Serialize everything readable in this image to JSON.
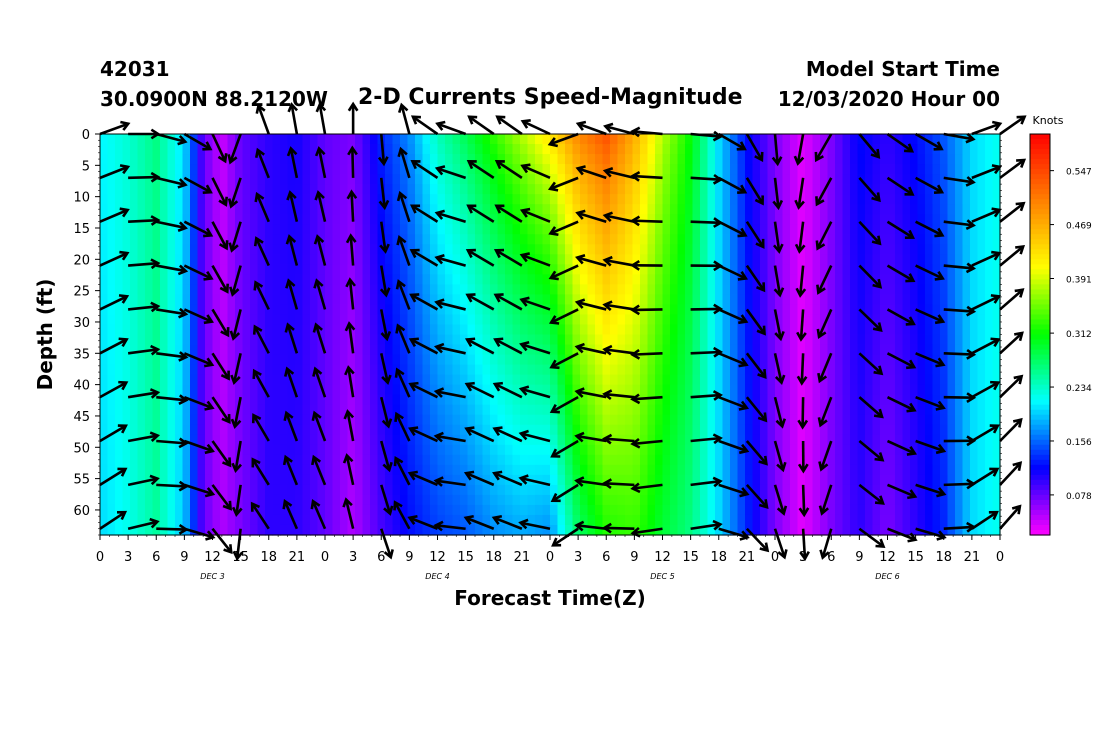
{
  "header": {
    "station_id": "42031",
    "coordinates": "30.0900N 88.2120W",
    "title": "2-D Currents Speed-Magnitude",
    "model_start_label": "Model Start Time",
    "model_start_value": "12/03/2020 Hour 00"
  },
  "chart_data": {
    "type": "heatmap",
    "title": "2-D Currents Speed-Magnitude",
    "xlabel": "Forecast Time(Z)",
    "ylabel": "Depth (ft)",
    "x_tick_labels": [
      "0",
      "3",
      "6",
      "9",
      "12",
      "15",
      "18",
      "21",
      "0",
      "3",
      "6",
      "9",
      "12",
      "15",
      "18",
      "21",
      "0",
      "3",
      "6",
      "9",
      "12",
      "15",
      "18",
      "21",
      "0",
      "3",
      "6",
      "9",
      "12",
      "15",
      "18",
      "21",
      "0"
    ],
    "x_range_hours": [
      0,
      96
    ],
    "day_labels": [
      "DEC 3",
      "DEC 4",
      "DEC 5",
      "DEC 6"
    ],
    "y_ticks": [
      0,
      5,
      10,
      15,
      20,
      25,
      30,
      35,
      40,
      45,
      50,
      55,
      60
    ],
    "y_range_ft": [
      0,
      64
    ],
    "colorbar": {
      "unit_label": "Knots",
      "tick_labels": [
        "0.547",
        "0.469",
        "0.391",
        "0.312",
        "0.234",
        "0.156",
        "0.078"
      ],
      "range": [
        0.02,
        0.6
      ],
      "colors": [
        "#ff00ff",
        "#7f00ff",
        "#0000ff",
        "#007fff",
        "#00ffff",
        "#00ff7f",
        "#00ff00",
        "#7fff00",
        "#ffff00",
        "#ffbf00",
        "#ff8000",
        "#ff4000",
        "#ff0000"
      ]
    },
    "speed_profile_by_hour": [
      {
        "hour": 0,
        "surface": 0.21,
        "bottom": 0.2
      },
      {
        "hour": 3,
        "surface": 0.23,
        "bottom": 0.22
      },
      {
        "hour": 6,
        "surface": 0.26,
        "bottom": 0.25
      },
      {
        "hour": 9,
        "surface": 0.2,
        "bottom": 0.19
      },
      {
        "hour": 11,
        "surface": 0.08,
        "bottom": 0.08
      },
      {
        "hour": 13,
        "surface": 0.04,
        "bottom": 0.05
      },
      {
        "hour": 15,
        "surface": 0.08,
        "bottom": 0.07
      },
      {
        "hour": 18,
        "surface": 0.1,
        "bottom": 0.1
      },
      {
        "hour": 21,
        "surface": 0.11,
        "bottom": 0.1
      },
      {
        "hour": 24,
        "surface": 0.08,
        "bottom": 0.08
      },
      {
        "hour": 27,
        "surface": 0.07,
        "bottom": 0.05
      },
      {
        "hour": 30,
        "surface": 0.13,
        "bottom": 0.09
      },
      {
        "hour": 33,
        "surface": 0.17,
        "bottom": 0.12
      },
      {
        "hour": 36,
        "surface": 0.24,
        "bottom": 0.14
      },
      {
        "hour": 39,
        "surface": 0.28,
        "bottom": 0.15
      },
      {
        "hour": 42,
        "surface": 0.33,
        "bottom": 0.17
      },
      {
        "hour": 45,
        "surface": 0.38,
        "bottom": 0.18
      },
      {
        "hour": 48,
        "surface": 0.43,
        "bottom": 0.17
      },
      {
        "hour": 51,
        "surface": 0.5,
        "bottom": 0.27
      },
      {
        "hour": 54,
        "surface": 0.54,
        "bottom": 0.32
      },
      {
        "hour": 57,
        "surface": 0.47,
        "bottom": 0.33
      },
      {
        "hour": 60,
        "surface": 0.38,
        "bottom": 0.29
      },
      {
        "hour": 63,
        "surface": 0.31,
        "bottom": 0.26
      },
      {
        "hour": 66,
        "surface": 0.2,
        "bottom": 0.2
      },
      {
        "hour": 69,
        "surface": 0.12,
        "bottom": 0.13
      },
      {
        "hour": 72,
        "surface": 0.07,
        "bottom": 0.07
      },
      {
        "hour": 75,
        "surface": 0.03,
        "bottom": 0.03
      },
      {
        "hour": 78,
        "surface": 0.07,
        "bottom": 0.07
      },
      {
        "hour": 81,
        "surface": 0.12,
        "bottom": 0.1
      },
      {
        "hour": 84,
        "surface": 0.1,
        "bottom": 0.07
      },
      {
        "hour": 87,
        "surface": 0.12,
        "bottom": 0.1
      },
      {
        "hour": 90,
        "surface": 0.15,
        "bottom": 0.13
      },
      {
        "hour": 93,
        "surface": 0.2,
        "bottom": 0.2
      },
      {
        "hour": 96,
        "surface": 0.22,
        "bottom": 0.22
      }
    ],
    "vector_depths_ft": [
      0,
      7,
      14,
      21,
      28,
      35,
      42,
      49,
      56,
      63
    ],
    "vector_direction_by_hour": [
      {
        "hour": 0,
        "dir_deg": 20
      },
      {
        "hour": 3,
        "dir_deg": 0
      },
      {
        "hour": 6,
        "dir_deg": -15
      },
      {
        "hour": 9,
        "dir_deg": -30
      },
      {
        "hour": 12,
        "dir_deg": -65
      },
      {
        "hour": 15,
        "dir_deg": -110
      },
      {
        "hour": 18,
        "dir_deg": 110
      },
      {
        "hour": 21,
        "dir_deg": 100
      },
      {
        "hour": 24,
        "dir_deg": 100
      },
      {
        "hour": 27,
        "dir_deg": 90
      },
      {
        "hour": 30,
        "dir_deg": -85
      },
      {
        "hour": 33,
        "dir_deg": 105
      },
      {
        "hour": 36,
        "dir_deg": 145
      },
      {
        "hour": 39,
        "dir_deg": 160
      },
      {
        "hour": 42,
        "dir_deg": 145
      },
      {
        "hour": 45,
        "dir_deg": 145
      },
      {
        "hour": 48,
        "dir_deg": 155
      },
      {
        "hour": 51,
        "dir_deg": -160
      },
      {
        "hour": 54,
        "dir_deg": 160
      },
      {
        "hour": 57,
        "dir_deg": 165
      },
      {
        "hour": 60,
        "dir_deg": 175
      },
      {
        "hour": 63,
        "dir_deg": -5
      },
      {
        "hour": 66,
        "dir_deg": -30
      },
      {
        "hour": 69,
        "dir_deg": -60
      },
      {
        "hour": 72,
        "dir_deg": -85
      },
      {
        "hour": 75,
        "dir_deg": -100
      },
      {
        "hour": 78,
        "dir_deg": -120
      },
      {
        "hour": 81,
        "dir_deg": -50
      },
      {
        "hour": 84,
        "dir_deg": -35
      },
      {
        "hour": 87,
        "dir_deg": -30
      },
      {
        "hour": 90,
        "dir_deg": -10
      },
      {
        "hour": 93,
        "dir_deg": 20
      },
      {
        "hour": 96,
        "dir_deg": 35
      }
    ]
  }
}
